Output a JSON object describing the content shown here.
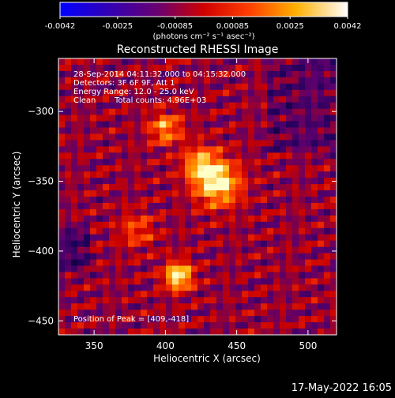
{
  "chart_data": {
    "type": "heatmap",
    "title": "Reconstructed RHESSI Image",
    "xlabel": "Heliocentric X (arcsec)",
    "ylabel": "Heliocentric Y (arcsec)",
    "xlim": [
      325,
      520
    ],
    "ylim": [
      -460,
      -262
    ],
    "x_ticks": [
      350,
      400,
      450,
      500
    ],
    "y_ticks": [
      -300,
      -350,
      -400,
      -450
    ],
    "colorbar": {
      "range": [
        -0.0042,
        0.0042
      ],
      "ticks": [
        "-0.0042",
        "-0.0025",
        "-0.00085",
        "0.00085",
        "0.0025",
        "0.0042"
      ],
      "unit_label": "(photons cm⁻² s⁻¹ asec⁻²)",
      "colormap": "black-blue-purple-red-orange-yellow-white"
    },
    "annotations": {
      "time_range": "28-Sep-2014 04:11:32.000 to 04:15:32.000",
      "detectors": "Detectors: 3F 6F 9F, Att 1",
      "energy_range": "Energy Range: 12.0 - 25.0 keV",
      "method": "Clean",
      "total_counts": "Total counts: 4.96E+03",
      "peak": "Position of Peak = [409,-418]"
    },
    "peak_position": [
      409,
      -418
    ],
    "sources": [
      {
        "x": 437,
        "y": -352,
        "peak_fraction": 0.95,
        "sigma": 11
      },
      {
        "x": 425,
        "y": -338,
        "peak_fraction": 0.7,
        "sigma": 9
      },
      {
        "x": 400,
        "y": -312,
        "peak_fraction": 0.65,
        "sigma": 8
      },
      {
        "x": 409,
        "y": -418,
        "peak_fraction": 1.0,
        "sigma": 7
      },
      {
        "x": 380,
        "y": -385,
        "peak_fraction": 0.4,
        "sigma": 9
      }
    ]
  },
  "timestamp": "17-May-2022 16:05"
}
